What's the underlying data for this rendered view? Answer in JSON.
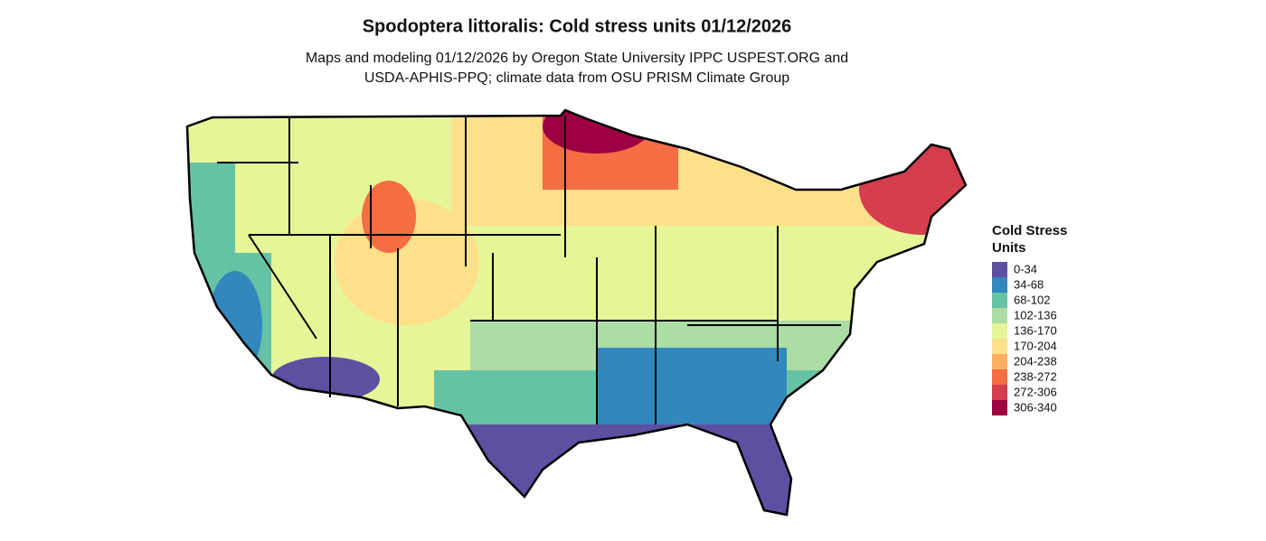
{
  "title": "Spodoptera littoralis: Cold stress units 01/12/2026",
  "subtitle": [
    "Maps and modeling 01/12/2026 by Oregon State University IPPC USPEST.ORG and",
    "USDA-APHIS-PPQ; climate data from OSU PRISM Climate Group"
  ],
  "legend": {
    "title": [
      "Cold Stress",
      "Units"
    ],
    "items": [
      {
        "label": "0-34",
        "color": "#5e4fa2"
      },
      {
        "label": "34-68",
        "color": "#3288bd"
      },
      {
        "label": "68-102",
        "color": "#66c2a5"
      },
      {
        "label": "102-136",
        "color": "#abdda4"
      },
      {
        "label": "136-170",
        "color": "#e6f598"
      },
      {
        "label": "170-204",
        "color": "#fee08b"
      },
      {
        "label": "204-238",
        "color": "#fdae61"
      },
      {
        "label": "238-272",
        "color": "#f46d43"
      },
      {
        "label": "272-306",
        "color": "#d53e4f"
      },
      {
        "label": "306-340",
        "color": "#9e0142"
      }
    ]
  }
}
